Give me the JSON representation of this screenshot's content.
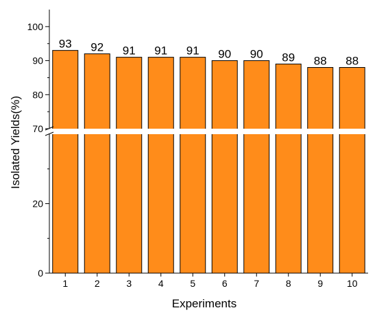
{
  "chart_data": {
    "type": "bar",
    "xlabel": "Experiments",
    "ylabel": "Isolated Yields(%)",
    "categories": [
      "1",
      "2",
      "3",
      "4",
      "5",
      "6",
      "7",
      "8",
      "9",
      "10"
    ],
    "values": [
      93,
      92,
      91,
      91,
      91,
      90,
      90,
      89,
      88,
      88
    ],
    "data_labels": [
      "93",
      "92",
      "91",
      "91",
      "91",
      "90",
      "90",
      "89",
      "88",
      "88"
    ],
    "ylim": [
      0,
      105
    ],
    "axis_break": [
      40,
      70
    ],
    "y_ticks": [
      {
        "value": 0,
        "label": "0"
      },
      {
        "value": 20,
        "label": "20"
      },
      {
        "value": 70,
        "label": "70"
      },
      {
        "value": 80,
        "label": "80"
      },
      {
        "value": 90,
        "label": "90"
      },
      {
        "value": 100,
        "label": "100"
      }
    ],
    "grid": false,
    "legend": "none",
    "bar_color": "#FF8C1A",
    "bar_edge_color": "#000000"
  }
}
